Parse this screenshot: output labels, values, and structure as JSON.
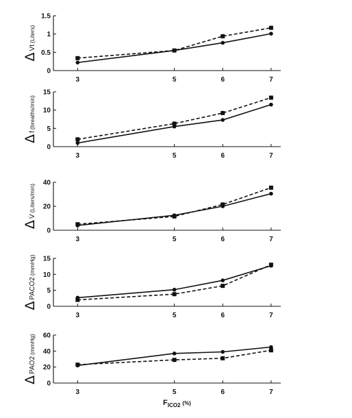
{
  "chart_data": [
    {
      "type": "line",
      "x": [
        3,
        5,
        6,
        7
      ],
      "xticks": [
        "3",
        "5",
        "6",
        "7"
      ],
      "ylim": [
        0,
        1.5
      ],
      "yticks": [
        "0",
        "0.5",
        "1",
        "1.5"
      ],
      "ylabel": {
        "prefix": "Δ",
        "main": "Vt",
        "unit": "(Liters)"
      },
      "series": [
        {
          "style": "solid",
          "marker": "circle",
          "values": [
            0.22,
            0.55,
            0.76,
            1.01
          ]
        },
        {
          "style": "dashed",
          "marker": "square",
          "values": [
            0.34,
            0.55,
            0.94,
            1.17
          ]
        }
      ]
    },
    {
      "type": "line",
      "x": [
        3,
        5,
        6,
        7
      ],
      "xticks": [
        "3",
        "5",
        "6",
        "7"
      ],
      "ylim": [
        0,
        15
      ],
      "yticks": [
        "0",
        "5",
        "10",
        "15"
      ],
      "ylabel": {
        "prefix": "Δ",
        "main": "f",
        "unit": "(breaths/min)"
      },
      "series": [
        {
          "style": "solid",
          "marker": "circle",
          "values": [
            1.0,
            5.5,
            7.3,
            11.5
          ]
        },
        {
          "style": "dashed",
          "marker": "square",
          "values": [
            2.0,
            6.3,
            9.2,
            13.4
          ]
        }
      ]
    },
    {
      "type": "line",
      "x": [
        3,
        5,
        6,
        7
      ],
      "xticks": [
        "3",
        "5",
        "6",
        "7"
      ],
      "ylim": [
        0,
        40
      ],
      "yticks": [
        "0",
        "20",
        "40"
      ],
      "ylabel": {
        "prefix": "Δ",
        "main": "V̇",
        "unit": "(Liters/min)"
      },
      "series": [
        {
          "style": "solid",
          "marker": "circle",
          "values": [
            4.0,
            12.5,
            20.0,
            30.5
          ]
        },
        {
          "style": "dashed",
          "marker": "square",
          "values": [
            5.0,
            11.5,
            21.5,
            35.5
          ]
        }
      ]
    },
    {
      "type": "line",
      "x": [
        3,
        5,
        6,
        7
      ],
      "xticks": [
        "3",
        "5",
        "6",
        "7"
      ],
      "ylim": [
        0,
        15
      ],
      "yticks": [
        "0",
        "5",
        "10",
        "15"
      ],
      "ylabel": {
        "prefix": "Δ",
        "main": "PACO2",
        "unit": "(mmHg)"
      },
      "series": [
        {
          "style": "solid",
          "marker": "circle",
          "values": [
            2.7,
            5.2,
            8.1,
            12.7
          ]
        },
        {
          "style": "dashed",
          "marker": "square",
          "values": [
            2.0,
            3.8,
            6.4,
            13.0
          ]
        }
      ]
    },
    {
      "type": "line",
      "x": [
        3,
        5,
        6,
        7
      ],
      "xticks": [
        "3",
        "5",
        "6",
        "7"
      ],
      "ylim": [
        0,
        60
      ],
      "yticks": [
        "0",
        "20",
        "40",
        "60"
      ],
      "ylabel": {
        "prefix": "Δ",
        "main": "PAO2",
        "unit": "(mmHg)"
      },
      "xlabel": {
        "main": "F",
        "sub": "ICO2",
        "unit": "(%)"
      },
      "series": [
        {
          "style": "solid",
          "marker": "circle",
          "values": [
            22,
            37,
            39,
            45
          ]
        },
        {
          "style": "dashed",
          "marker": "square",
          "values": [
            23,
            29,
            31,
            41
          ]
        }
      ]
    }
  ]
}
